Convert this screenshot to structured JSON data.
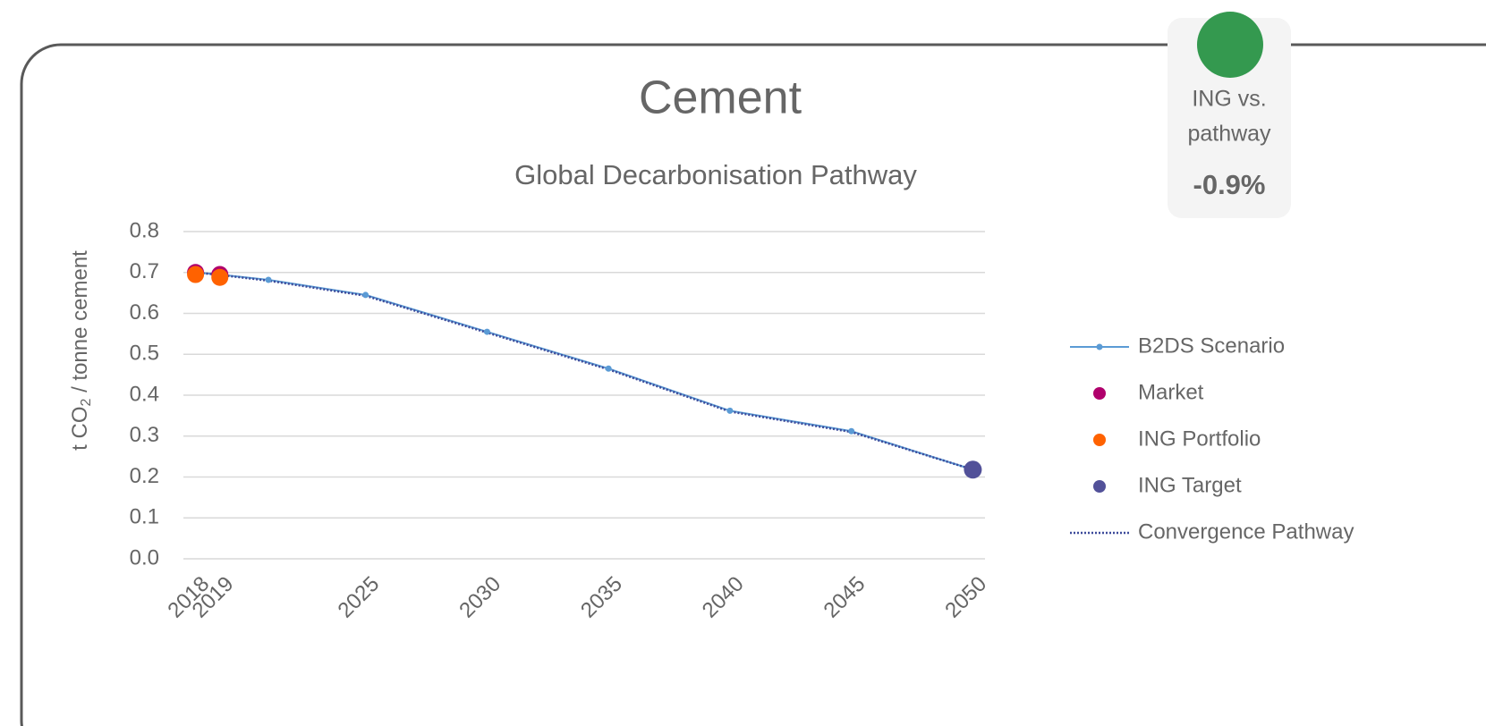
{
  "badge": {
    "label_lines": [
      "ING vs.",
      "pathway"
    ],
    "value": "-0.9%"
  },
  "chart_data": {
    "type": "line",
    "title": "Cement",
    "subtitle": "Global Decarbonisation Pathway",
    "ylabel": {
      "prefix": "t CO",
      "sub": "2",
      "suffix": "/ tonne cement"
    },
    "xlim": [
      2017.5,
      2050.5
    ],
    "xticks": [
      2018,
      2019,
      2025,
      2030,
      2035,
      2040,
      2045,
      2050
    ],
    "ylim": [
      0,
      0.8
    ],
    "yticks": [
      {
        "value": 0,
        "label": "0.0"
      },
      0.1,
      0.2,
      0.3,
      0.4,
      0.5,
      0.6,
      0.7,
      0.8
    ],
    "grid": true,
    "legend": "right",
    "series": [
      {
        "name": "B2DS Scenario",
        "color": "#5b9bd5",
        "style": "line-markers",
        "x": [
          2018,
          2019,
          2021,
          2025,
          2030,
          2035,
          2040,
          2045,
          2050
        ],
        "values": [
          0.7,
          0.695,
          0.682,
          0.645,
          0.555,
          0.465,
          0.362,
          0.312,
          0.218
        ]
      },
      {
        "name": "Market",
        "color": "#b0006c",
        "style": "markers",
        "x": [
          2018,
          2019
        ],
        "values": [
          0.7,
          0.695
        ]
      },
      {
        "name": "ING Portfolio",
        "color": "#ff6200",
        "style": "markers",
        "x": [
          2018,
          2019
        ],
        "values": [
          0.695,
          0.688
        ]
      },
      {
        "name": "ING Target",
        "color": "#525199",
        "style": "markers",
        "x": [
          2050
        ],
        "values": [
          0.218
        ]
      },
      {
        "name": "Convergence Pathway",
        "color": "#3d4a9a",
        "style": "dotted",
        "x": [
          2018,
          2019,
          2021,
          2025,
          2030,
          2035,
          2040,
          2045,
          2050
        ],
        "values": [
          0.7,
          0.694,
          0.68,
          0.643,
          0.553,
          0.463,
          0.36,
          0.31,
          0.218
        ]
      }
    ]
  }
}
